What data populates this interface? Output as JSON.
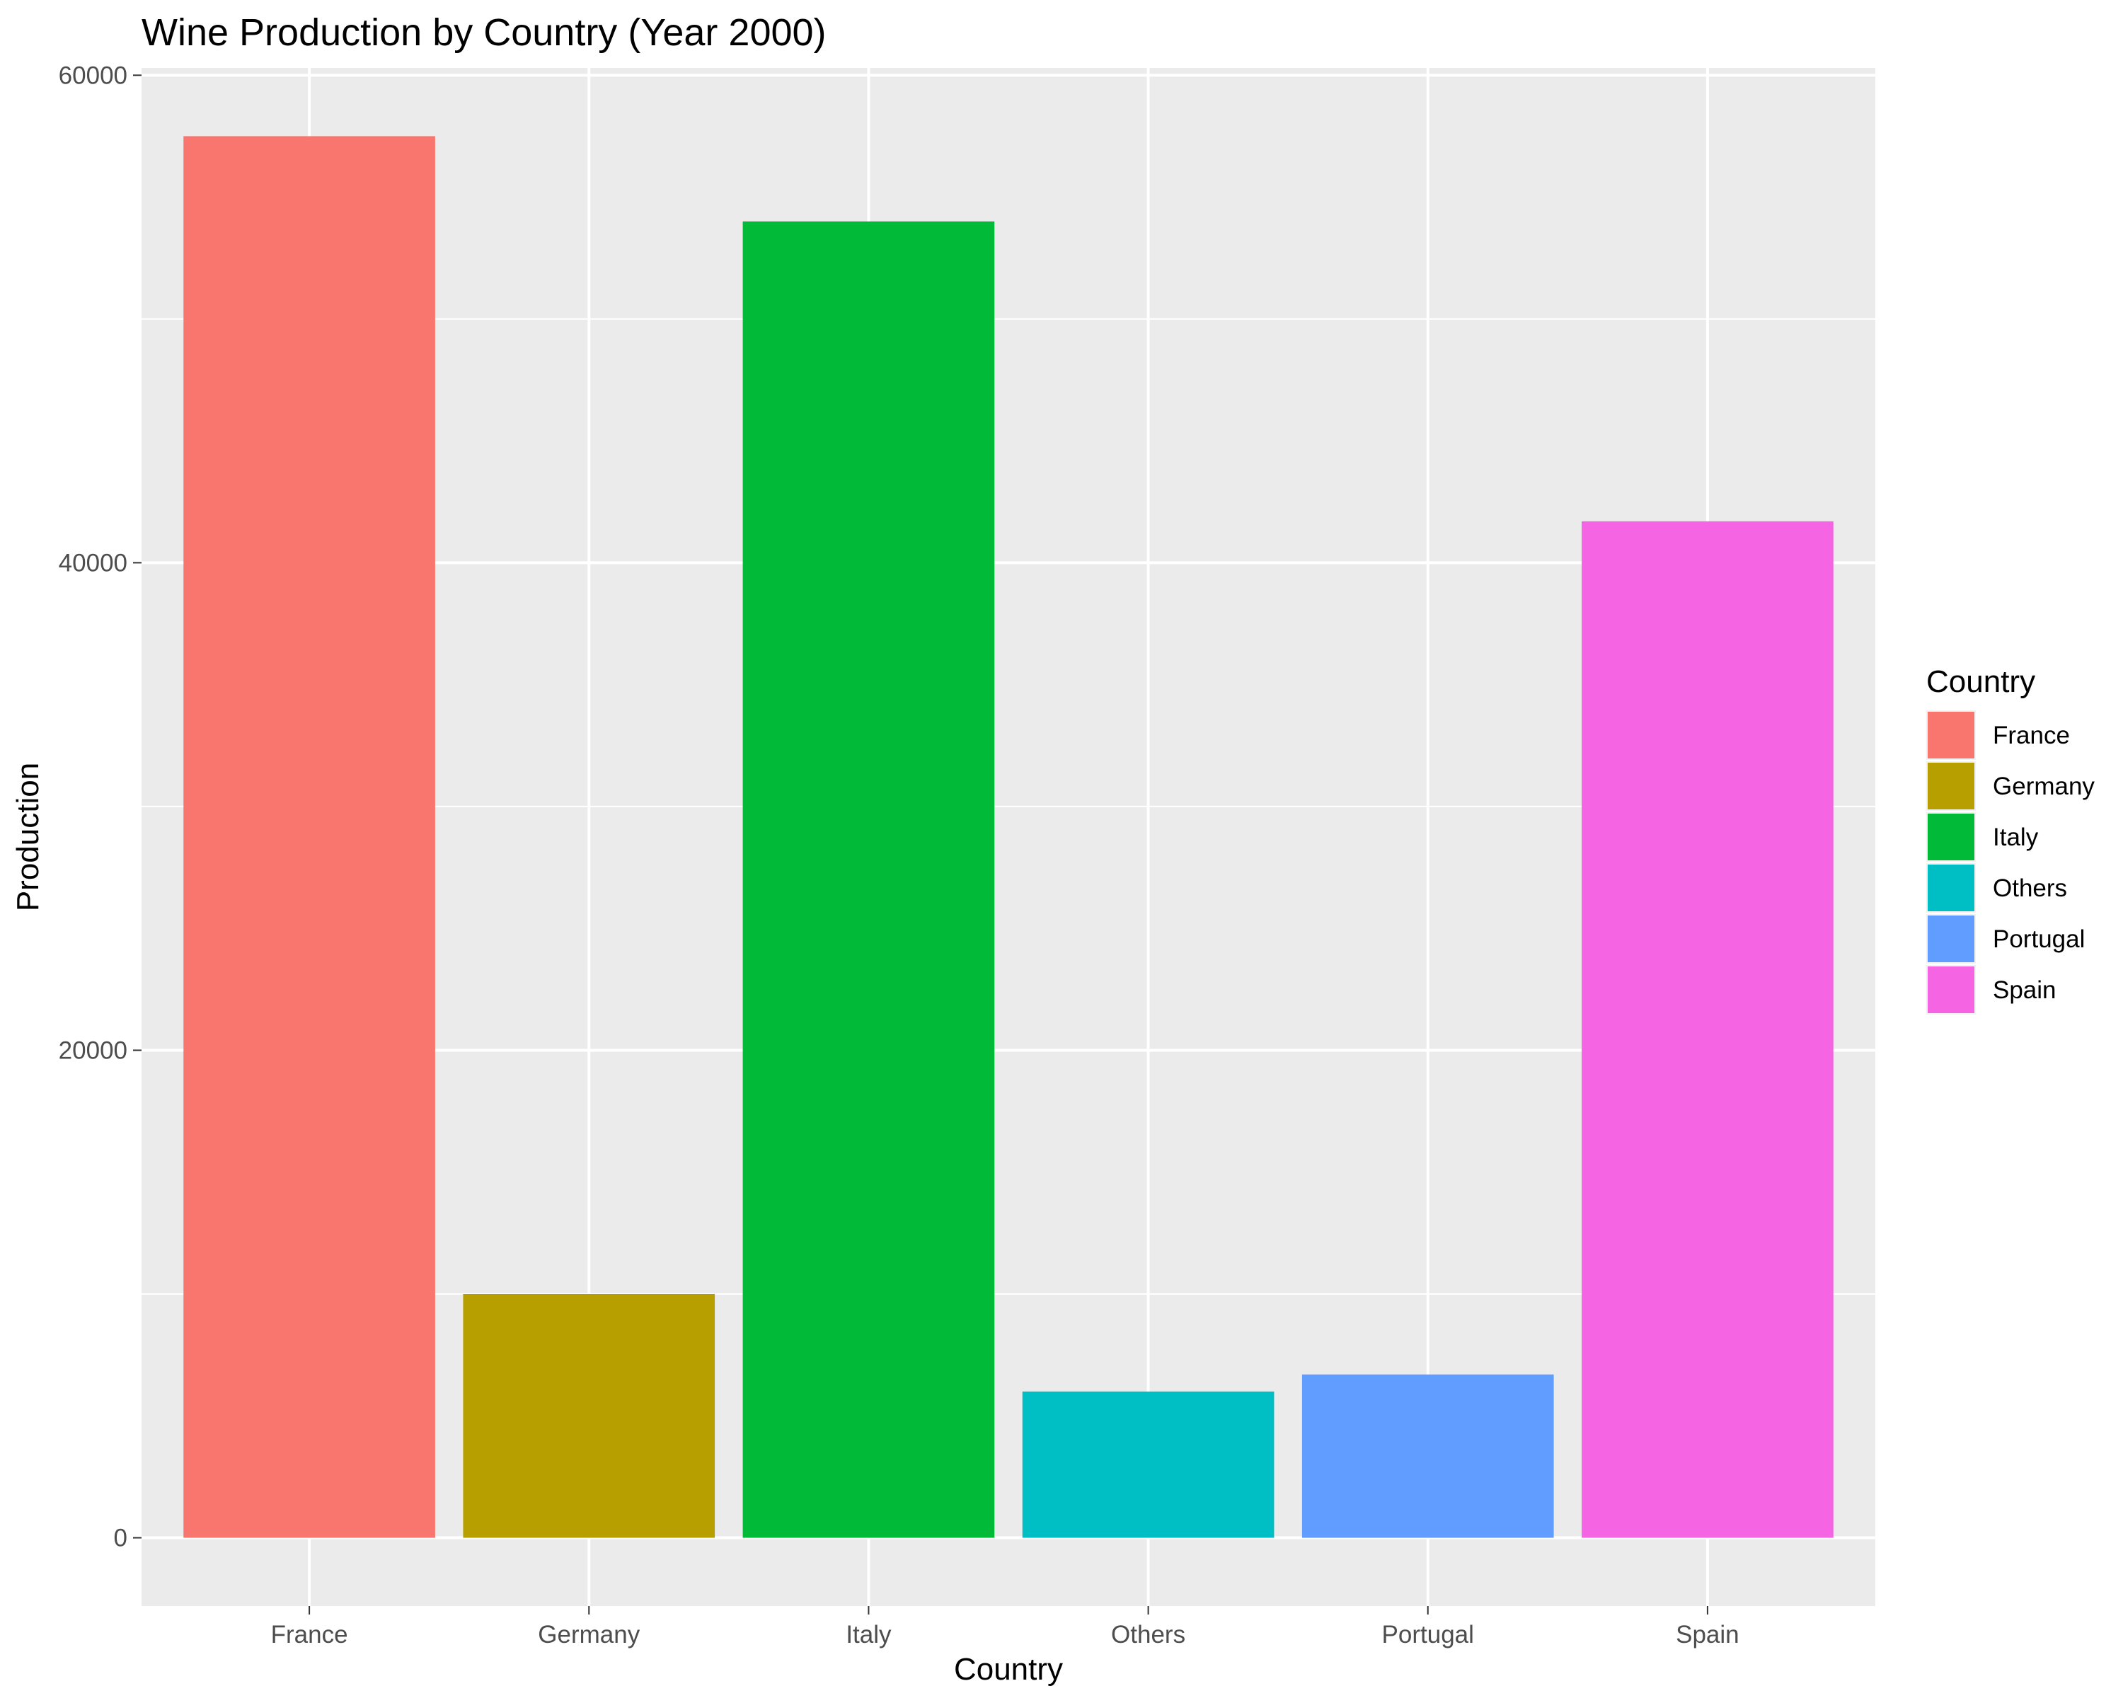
{
  "chart_data": {
    "type": "bar",
    "title": "Wine Production by Country (Year 2000)",
    "xlabel": "Country",
    "ylabel": "Production",
    "categories": [
      "France",
      "Germany",
      "Italy",
      "Others",
      "Portugal",
      "Spain"
    ],
    "values": [
      57500,
      10000,
      54000,
      6000,
      6700,
      41700
    ],
    "colors": [
      "#F8766D",
      "#B79F00",
      "#00BA38",
      "#00BFC4",
      "#619CFF",
      "#F564E3"
    ],
    "ylim": [
      -2800,
      60300
    ],
    "yticks": [
      0,
      20000,
      40000,
      60000
    ],
    "grid": true,
    "legend": {
      "title": "Country",
      "placement": "right",
      "entries": [
        "France",
        "Germany",
        "Italy",
        "Others",
        "Portugal",
        "Spain"
      ]
    }
  }
}
